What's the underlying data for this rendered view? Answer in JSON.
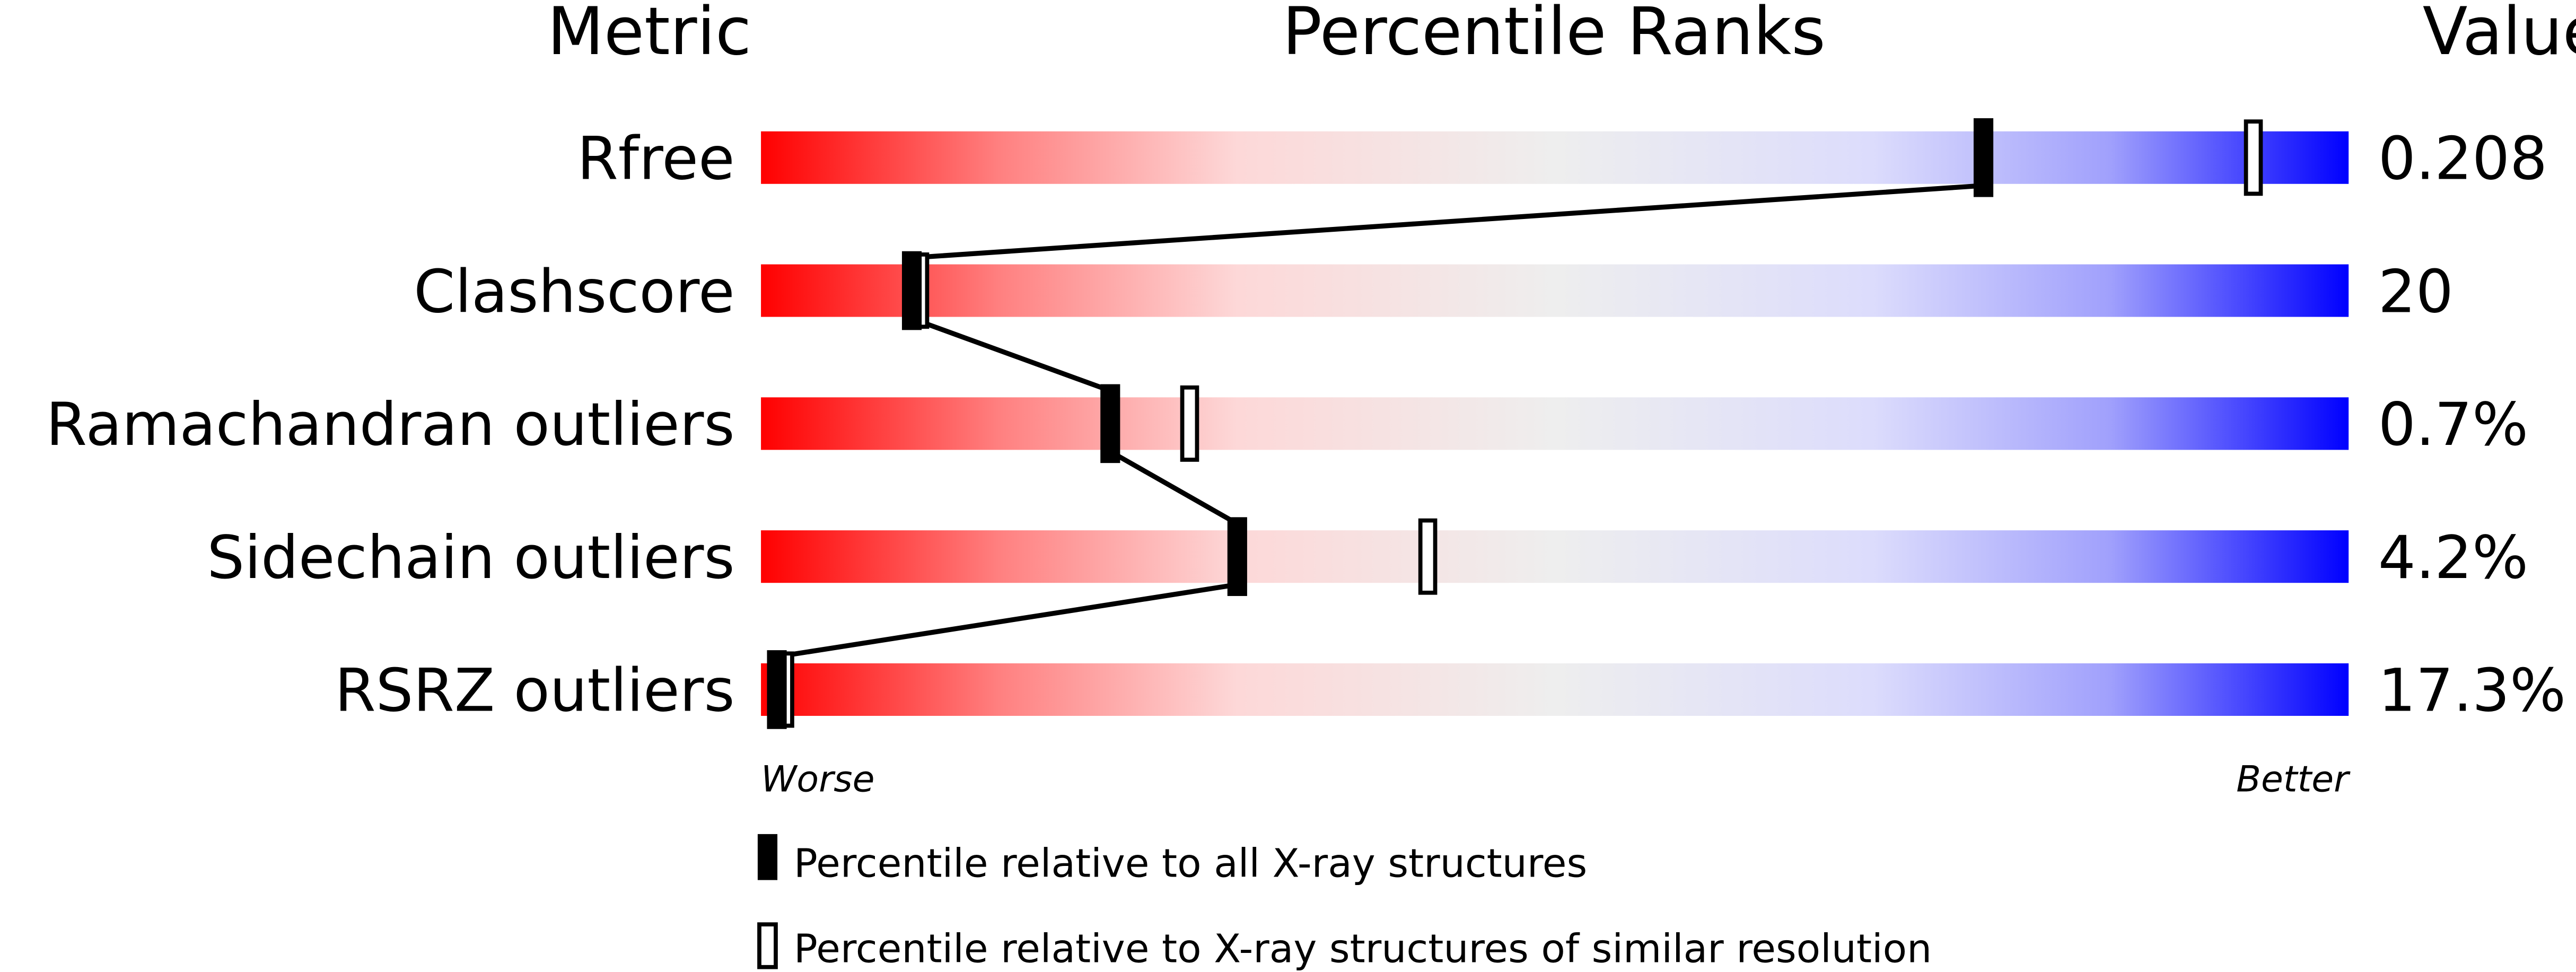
{
  "chart_data": {
    "type": "bar",
    "headers": {
      "metric": "Metric",
      "percentile": "Percentile Ranks",
      "value": "Value"
    },
    "xlim": [
      0,
      100
    ],
    "axis_labels": {
      "left": "Worse",
      "right": "Better"
    },
    "colors": {
      "worse": "#ff0000",
      "neutral": "#eeeeee",
      "better": "#0000ff",
      "marker": "#000000"
    },
    "series": [
      {
        "name": "Percentile relative to all X-ray structures",
        "marker": "filled"
      },
      {
        "name": "Percentile relative to X-ray structures of similar resolution",
        "marker": "open"
      }
    ],
    "rows": [
      {
        "metric": "Rfree",
        "value": "0.208",
        "all": 77,
        "similar": 94
      },
      {
        "metric": "Clashscore",
        "value": "20",
        "all": 9.5,
        "similar": 10
      },
      {
        "metric": "Ramachandran outliers",
        "value": "0.7%",
        "all": 22,
        "similar": 27
      },
      {
        "metric": "Sidechain outliers",
        "value": "4.2%",
        "all": 30,
        "similar": 42
      },
      {
        "metric": "RSRZ outliers",
        "value": "17.3%",
        "all": 1,
        "similar": 1.5
      }
    ]
  }
}
